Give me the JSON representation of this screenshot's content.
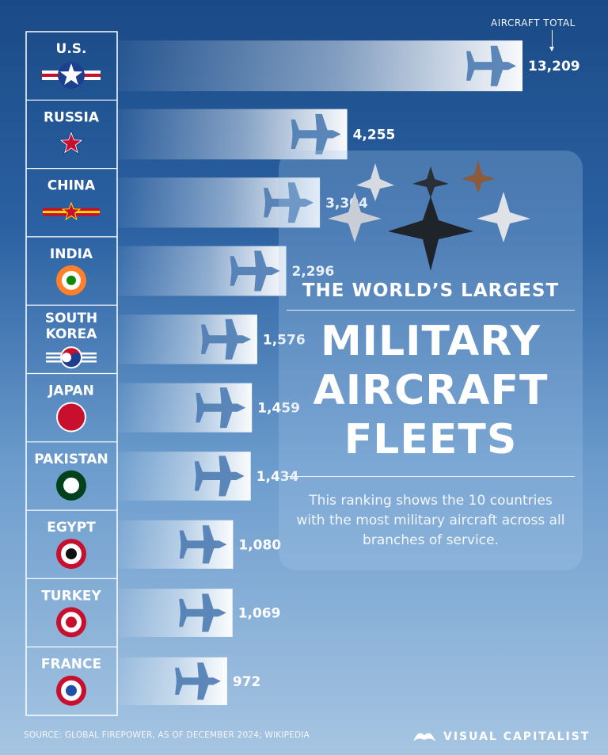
{
  "title": {
    "kicker": "THE WORLD’S LARGEST",
    "main_lines": [
      "MILITARY",
      "AIRCRAFT",
      "FLEETS"
    ],
    "description": "This ranking shows the 10 countries with the most military aircraft across all branches of service."
  },
  "total_note": "AIRCRAFT TOTAL",
  "source": "SOURCE: GLOBAL FIREPOWER, AS OF DECEMBER 2024; WIKIPEDIA",
  "brand": "VISUAL CAPITALIST",
  "colors": {
    "flag_red": "#c8102e",
    "flag_blue": "#1d3f8f",
    "saffron": "#ff7f2a",
    "india_green": "#138808",
    "pakistan_green": "#01411c",
    "china_yellow": "#ffde00"
  },
  "chart_data": {
    "type": "bar",
    "orientation": "horizontal",
    "categories": [
      "U.S.",
      "RUSSIA",
      "CHINA",
      "INDIA",
      "SOUTH KOREA",
      "JAPAN",
      "PAKISTAN",
      "EGYPT",
      "TURKEY",
      "FRANCE"
    ],
    "values": [
      13209,
      4255,
      3304,
      2296,
      1576,
      1459,
      1434,
      1080,
      1069,
      972
    ],
    "value_labels": [
      "13,209",
      "4,255",
      "3,304",
      "2,296",
      "1,576",
      "1,459",
      "1,434",
      "1,080",
      "1,069",
      "972"
    ],
    "flag_icons": [
      "us-roundel-icon",
      "russia-star-icon",
      "china-roundel-icon",
      "india-roundel-icon",
      "south-korea-taeguk-icon",
      "japan-roundel-icon",
      "pakistan-roundel-icon",
      "egypt-roundel-icon",
      "turkey-roundel-icon",
      "france-roundel-icon"
    ],
    "xlim": [
      0,
      13209
    ]
  }
}
